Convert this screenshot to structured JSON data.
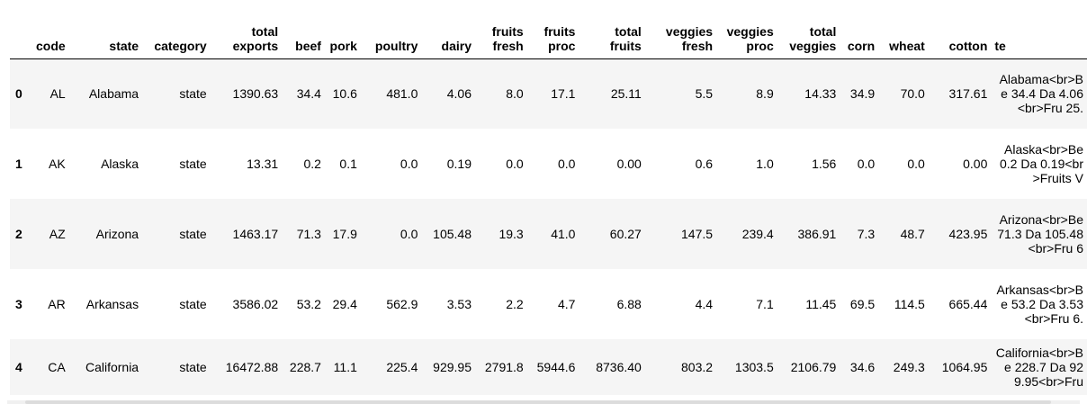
{
  "table": {
    "columns": [
      "",
      "code",
      "state",
      "category",
      "total\nexports",
      "beef",
      "pork",
      "poultry",
      "dairy",
      "fruits\nfresh",
      "fruits\nproc",
      "total\nfruits",
      "veggies\nfresh",
      "veggies\nproc",
      "total\nveggies",
      "corn",
      "wheat",
      "cotton",
      "te"
    ],
    "rows": [
      [
        "0",
        "AL",
        "Alabama",
        "state",
        "1390.63",
        "34.4",
        "10.6",
        "481.0",
        "4.06",
        "8.0",
        "17.1",
        "25.11",
        "5.5",
        "8.9",
        "14.33",
        "34.9",
        "70.0",
        "317.61",
        "Alabama<br>Be 34.4 Da 4.06<br>Fru 25."
      ],
      [
        "1",
        "AK",
        "Alaska",
        "state",
        "13.31",
        "0.2",
        "0.1",
        "0.0",
        "0.19",
        "0.0",
        "0.0",
        "0.00",
        "0.6",
        "1.0",
        "1.56",
        "0.0",
        "0.0",
        "0.00",
        "Alaska<br>Be 0.2 Da 0.19<br>Fruits V"
      ],
      [
        "2",
        "AZ",
        "Arizona",
        "state",
        "1463.17",
        "71.3",
        "17.9",
        "0.0",
        "105.48",
        "19.3",
        "41.0",
        "60.27",
        "147.5",
        "239.4",
        "386.91",
        "7.3",
        "48.7",
        "423.95",
        "Arizona<br>Be 71.3 Da 105.48<br>Fru 6"
      ],
      [
        "3",
        "AR",
        "Arkansas",
        "state",
        "3586.02",
        "53.2",
        "29.4",
        "562.9",
        "3.53",
        "2.2",
        "4.7",
        "6.88",
        "4.4",
        "7.1",
        "11.45",
        "69.5",
        "114.5",
        "665.44",
        "Arkansas<br>Be 53.2 Da 3.53<br>Fru 6."
      ],
      [
        "4",
        "CA",
        "California",
        "state",
        "16472.88",
        "228.7",
        "11.1",
        "225.4",
        "929.95",
        "2791.8",
        "5944.6",
        "8736.40",
        "803.2",
        "1303.5",
        "2106.79",
        "34.6",
        "249.3",
        "1064.95",
        "California<br>Be 228.7 Da 929.95<br>Fru"
      ]
    ]
  }
}
